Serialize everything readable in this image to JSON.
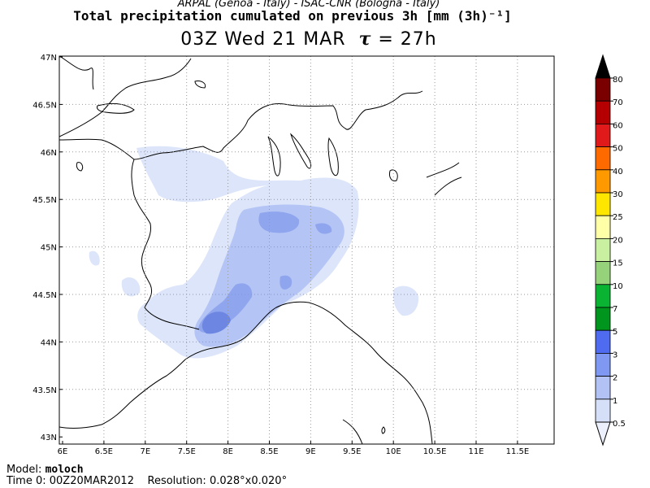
{
  "header": {
    "source_line": "ARPAL (Genoa - Italy)   -   ISAC-CNR (Bologna - Italy)",
    "title": "Total precipitation cumulated on previous 3h [mm (3h)⁻¹]",
    "time_label": "03Z Wed 21 MAR",
    "tau_symbol": "τ",
    "tau_value": "= 27h"
  },
  "map": {
    "lon_labels": [
      "6E",
      "6.5E",
      "7E",
      "7.5E",
      "8E",
      "8.5E",
      "9E",
      "9.5E",
      "10E",
      "10.5E",
      "11E",
      "11.5E"
    ],
    "lat_labels": [
      "47N",
      "46.5N",
      "46N",
      "45.5N",
      "45N",
      "44.5N",
      "44N",
      "43.5N",
      "43N"
    ],
    "grid": "dotted",
    "precip_colors": {
      "light": "#dce5fa",
      "mid": "#b4c4f5",
      "strong": "#8fa5ee",
      "max": "#6d86e2"
    }
  },
  "colorbar": {
    "labels": [
      "80",
      "70",
      "60",
      "50",
      "40",
      "30",
      "25",
      "20",
      "15",
      "10",
      "7",
      "5",
      "3",
      "2",
      "1",
      "0.5"
    ],
    "colors": [
      "#000000",
      "#7a0000",
      "#b40000",
      "#e01a1a",
      "#ff6a00",
      "#ff9900",
      "#ffe600",
      "#ffffa8",
      "#c8f0a0",
      "#96d27a",
      "#0ab432",
      "#00961e",
      "#4f6cf0",
      "#7f98f2",
      "#b2c2f5",
      "#d6dff8",
      "#ecf0fc"
    ]
  },
  "footer": {
    "model_label": "Model:",
    "model_value": "moloch",
    "time0_label": "Time 0:",
    "time0_value": "00Z20MAR2012",
    "resolution_label": "Resolution:",
    "resolution_value": "0.028°x0.020°"
  }
}
